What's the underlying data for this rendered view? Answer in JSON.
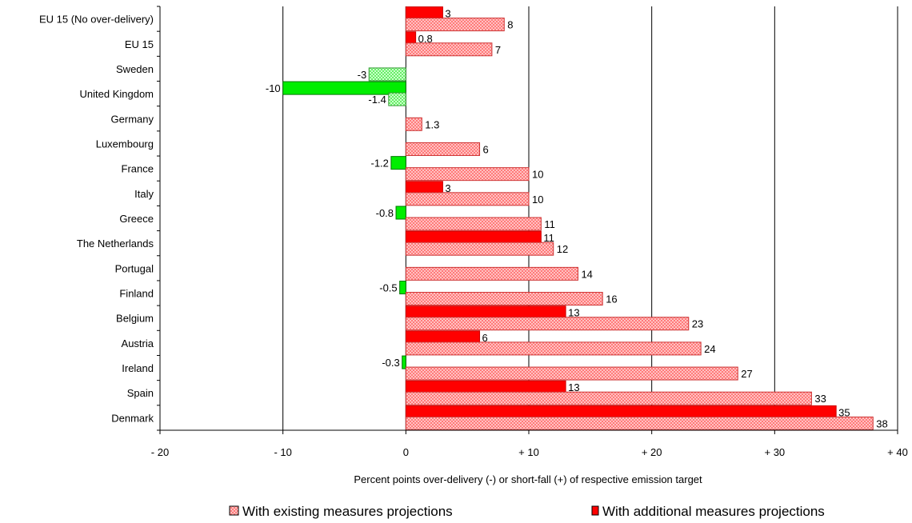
{
  "chart_data": {
    "type": "bar",
    "orientation": "horizontal",
    "categories": [
      "EU 15 (No over-delivery)",
      "EU 15",
      "Sweden",
      "United Kingdom",
      "Germany",
      "Luxembourg",
      "France",
      "Italy",
      "Greece",
      "The Netherlands",
      "Portugal",
      "Finland",
      "Belgium",
      "Austria",
      "Ireland",
      "Spain",
      "Denmark"
    ],
    "series": [
      {
        "name": "With existing measures projections",
        "values": [
          8,
          7,
          -3,
          -1.4,
          1.3,
          6,
          10,
          10,
          11,
          12,
          14,
          16,
          23,
          24,
          27,
          33,
          38
        ],
        "labels": [
          "8",
          "7",
          "-3",
          "-1.4",
          "1.3",
          "6",
          "10",
          "10",
          "11",
          "12",
          "14",
          "16",
          "23",
          "24",
          "27",
          "33",
          "38"
        ],
        "negative_color": "#99ff99"
      },
      {
        "name": "With additional measures projections",
        "values": [
          3,
          0.8,
          null,
          -10,
          null,
          null,
          -1.2,
          3,
          -0.8,
          11,
          null,
          -0.5,
          13,
          6,
          -0.3,
          13,
          35
        ],
        "labels": [
          "3",
          "0.8",
          "",
          "-10",
          "",
          "",
          "-1.2",
          "3",
          "-0.8",
          "11",
          "",
          "-0.5",
          "13",
          "6",
          "-0.3",
          "13",
          "35"
        ],
        "negative_color": "#00ee00"
      }
    ],
    "xlabel": "Percent points over-delivery (-) or short-fall (+) of respective emission target",
    "xlim": [
      -20,
      40
    ],
    "xticks": [
      -20,
      -10,
      0,
      10,
      20,
      30,
      40
    ],
    "xtick_labels": [
      "- 20",
      "- 10",
      "0",
      "+ 10",
      "+ 20",
      "+ 30",
      "+ 40"
    ],
    "grid": true,
    "legend_position": "bottom",
    "colors": {
      "existing": "#ff8080",
      "existing_pattern": "#ffcccc",
      "additional": "#ff0000",
      "additional_dark": "#cc0000"
    }
  }
}
